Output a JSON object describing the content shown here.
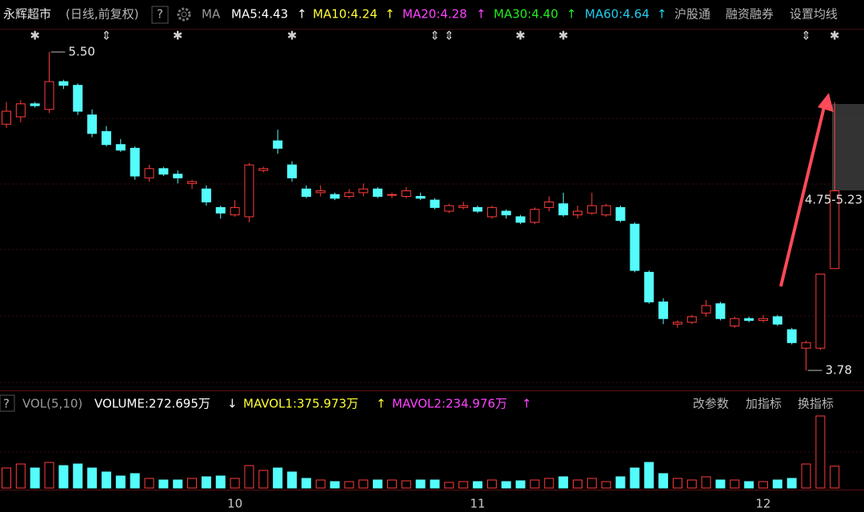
{
  "header": {
    "items": [
      {
        "text": "永辉超市",
        "color": "#e6e6e6"
      },
      {
        "text": "(日线,前复权)",
        "color": "#b4b4b4"
      },
      {
        "text": "?",
        "color": "#b4b4b4"
      },
      {
        "text": "MA",
        "color": "#9a9a9a"
      },
      {
        "text": "MA5:4.43",
        "color": "#ffffff"
      },
      {
        "text": "↑",
        "color": "#ffffff"
      },
      {
        "text": "MA10:4.24",
        "color": "#ffff33"
      },
      {
        "text": "↑",
        "color": "#ffff33"
      },
      {
        "text": "MA20:4.28",
        "color": "#ff44ff"
      },
      {
        "text": "↑",
        "color": "#ff44ff"
      },
      {
        "text": "MA30:4.40",
        "color": "#22ee22"
      },
      {
        "text": "↑",
        "color": "#22ee22"
      },
      {
        "text": "MA60:4.64",
        "color": "#22ccee"
      },
      {
        "text": "↑",
        "color": "#22ccee"
      },
      {
        "text": "沪股通",
        "color": "#b4b4b4"
      },
      {
        "text": "融资融券",
        "color": "#b4b4b4"
      },
      {
        "text": "设置均线",
        "color": "#b4b4b4"
      }
    ]
  },
  "chart_data": {
    "type": "candlestick",
    "up_color": "#ff3c3c",
    "down_color": "#54fcfc",
    "categories": [
      null,
      null,
      null,
      null,
      null,
      null,
      null,
      null,
      null,
      null,
      null,
      null,
      null,
      null,
      null,
      null,
      "10",
      null,
      null,
      null,
      null,
      null,
      null,
      null,
      null,
      null,
      null,
      null,
      null,
      null,
      null,
      null,
      null,
      "11",
      null,
      null,
      null,
      null,
      null,
      null,
      null,
      null,
      null,
      null,
      null,
      null,
      null,
      null,
      null,
      null,
      null,
      null,
      null,
      "12",
      null,
      null,
      null,
      null,
      null
    ],
    "markers": [
      null,
      null,
      "✱",
      null,
      null,
      null,
      null,
      "⇕",
      null,
      null,
      null,
      null,
      "✱",
      null,
      null,
      null,
      null,
      null,
      null,
      null,
      "✱",
      null,
      null,
      null,
      null,
      null,
      null,
      null,
      null,
      null,
      "⇕",
      "⇕",
      null,
      null,
      null,
      null,
      "✱",
      null,
      null,
      "✱",
      null,
      null,
      null,
      null,
      null,
      null,
      null,
      null,
      null,
      null,
      null,
      null,
      null,
      null,
      null,
      null,
      "⇕",
      null,
      "✱"
    ],
    "open": [
      5.11,
      5.15,
      5.22,
      5.19,
      5.34,
      5.32,
      5.16,
      5.07,
      5.0,
      4.98,
      4.82,
      4.87,
      4.84,
      4.79,
      4.76,
      4.66,
      4.62,
      4.61,
      4.86,
      5.02,
      4.89,
      4.76,
      4.74,
      4.73,
      4.72,
      4.74,
      4.76,
      4.73,
      4.72,
      4.72,
      4.7,
      4.64,
      4.66,
      4.66,
      4.61,
      4.64,
      4.61,
      4.58,
      4.66,
      4.68,
      4.62,
      4.63,
      4.62,
      4.66,
      4.57,
      4.31,
      4.15,
      4.03,
      4.04,
      4.09,
      4.14,
      4.02,
      4.06,
      4.05,
      4.07,
      4.0,
      3.9,
      3.9,
      4.33
    ],
    "high": [
      5.23,
      5.24,
      5.23,
      5.5,
      5.35,
      5.33,
      5.19,
      5.1,
      5.03,
      4.99,
      4.89,
      4.88,
      4.86,
      4.81,
      4.78,
      4.67,
      4.7,
      4.9,
      4.88,
      5.08,
      4.91,
      4.78,
      4.78,
      4.74,
      4.76,
      4.79,
      4.77,
      4.74,
      4.77,
      4.74,
      4.71,
      4.68,
      4.69,
      4.67,
      4.67,
      4.65,
      4.62,
      4.66,
      4.72,
      4.74,
      4.67,
      4.74,
      4.68,
      4.67,
      4.58,
      4.32,
      4.17,
      4.05,
      4.08,
      4.16,
      4.15,
      4.07,
      4.07,
      4.08,
      4.08,
      4.01,
      3.94,
      4.3,
      5.23
    ],
    "low": [
      5.09,
      5.12,
      5.2,
      5.17,
      5.3,
      5.16,
      5.04,
      4.99,
      4.96,
      4.81,
      4.8,
      4.83,
      4.79,
      4.76,
      4.67,
      4.6,
      4.61,
      4.58,
      4.85,
      4.95,
      4.8,
      4.71,
      4.72,
      4.7,
      4.71,
      4.72,
      4.71,
      4.71,
      4.71,
      4.7,
      4.65,
      4.63,
      4.65,
      4.63,
      4.6,
      4.6,
      4.57,
      4.57,
      4.64,
      4.61,
      4.6,
      4.62,
      4.61,
      4.58,
      4.31,
      4.14,
      4.03,
      4.01,
      4.03,
      4.07,
      4.05,
      4.01,
      4.04,
      4.04,
      4.02,
      3.92,
      3.78,
      3.89,
      4.33
    ],
    "close": [
      5.18,
      5.22,
      5.21,
      5.34,
      5.32,
      5.18,
      5.06,
      5.0,
      4.97,
      4.83,
      4.87,
      4.84,
      4.82,
      4.8,
      4.69,
      4.63,
      4.66,
      4.89,
      4.87,
      4.98,
      4.82,
      4.72,
      4.75,
      4.71,
      4.74,
      4.76,
      4.72,
      4.73,
      4.75,
      4.71,
      4.66,
      4.67,
      4.67,
      4.64,
      4.66,
      4.62,
      4.58,
      4.65,
      4.69,
      4.62,
      4.64,
      4.67,
      4.67,
      4.59,
      4.32,
      4.15,
      4.06,
      4.04,
      4.07,
      4.13,
      4.06,
      4.06,
      4.05,
      4.06,
      4.03,
      3.93,
      3.93,
      4.3,
      4.75
    ],
    "volume": [
      250,
      300,
      250,
      320,
      280,
      300,
      250,
      200,
      150,
      180,
      120,
      100,
      100,
      120,
      140,
      150,
      120,
      280,
      220,
      250,
      200,
      120,
      100,
      80,
      80,
      100,
      100,
      100,
      90,
      100,
      100,
      70,
      80,
      80,
      100,
      80,
      90,
      100,
      120,
      140,
      100,
      120,
      80,
      140,
      250,
      320,
      180,
      120,
      100,
      140,
      100,
      100,
      80,
      80,
      100,
      120,
      300,
      900,
      272.695
    ],
    "annotations": {
      "high_label": "5.50",
      "low_label": "3.78",
      "range_label": "4.75-5.23"
    },
    "volume_panel": {
      "items": [
        {
          "text": "VOL(5,10)",
          "color": "#9a9a9a"
        },
        {
          "text": "VOLUME:272.695万",
          "color": "#ffffff"
        },
        {
          "text": "↓",
          "color": "#ffffff"
        },
        {
          "text": "MAVOL1:375.973万",
          "color": "#ffff33"
        },
        {
          "text": "↑",
          "color": "#ffff33"
        },
        {
          "text": "MAVOL2:234.976万",
          "color": "#ff44ff"
        },
        {
          "text": "↑",
          "color": "#ff44ff"
        }
      ],
      "buttons": [
        "改参数",
        "加指标",
        "换指标"
      ]
    }
  }
}
